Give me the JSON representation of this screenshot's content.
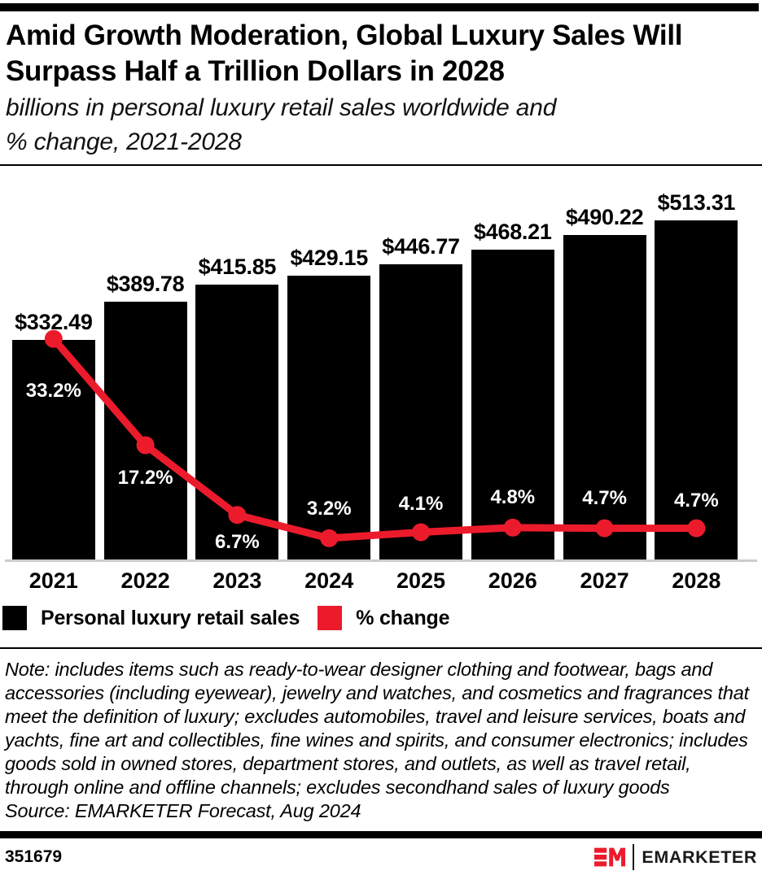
{
  "colors": {
    "accent_red": "#EC1B2C",
    "bar_black": "#000000",
    "axis_gray": "#cccccc",
    "pct_label_white": "#ffffff"
  },
  "header": {
    "title_line1": "Amid Growth Moderation, Global Luxury Sales Will",
    "title_line2": "Surpass Half a Trillion Dollars in 2028",
    "subtitle_line1": "billions in personal luxury retail sales worldwide and",
    "subtitle_line2": "% change, 2021-2028"
  },
  "chart_data": {
    "type": "bar",
    "subtype": "bar-line-combo",
    "categories": [
      "2021",
      "2022",
      "2023",
      "2024",
      "2025",
      "2026",
      "2027",
      "2028"
    ],
    "series": [
      {
        "name": "Personal luxury retail sales",
        "type": "bar",
        "unit": "$ billions",
        "color": "#000000",
        "values": [
          332.49,
          389.78,
          415.85,
          429.15,
          446.77,
          468.21,
          490.22,
          513.31
        ],
        "labels": [
          "$332.49",
          "$389.78",
          "$415.85",
          "$429.15",
          "$446.77",
          "$468.21",
          "$490.22",
          "$513.31"
        ]
      },
      {
        "name": "% change",
        "type": "line",
        "unit": "%",
        "color": "#EC1B2C",
        "values": [
          33.2,
          17.2,
          6.7,
          3.2,
          4.1,
          4.8,
          4.7,
          4.7
        ],
        "labels": [
          "33.2%",
          "17.2%",
          "6.7%",
          "3.2%",
          "4.1%",
          "4.8%",
          "4.7%",
          "4.7%"
        ]
      }
    ],
    "title": "Amid Growth Moderation, Global Luxury Sales Will Surpass Half a Trillion Dollars in 2028",
    "subtitle": "billions in personal luxury retail sales worldwide and % change, 2021-2028",
    "xlabel": "",
    "ylabel": "",
    "ylim_bars": [
      0,
      513.31
    ],
    "ylim_pct": [
      0,
      33.2
    ],
    "grid": false,
    "axes_hidden": true,
    "value_labels_position": "above bars (bold black)",
    "pct_labels_position": "on bars near line points (bold white)",
    "legend_position": "below chart, left-aligned"
  },
  "legend": {
    "items": [
      {
        "label": "Personal luxury retail sales",
        "color": "#000000"
      },
      {
        "label": "% change",
        "color": "#EC1B2C"
      }
    ]
  },
  "note": "Note: includes items such as ready-to-wear designer clothing and footwear, bags and accessories (including eyewear), jewelry and watches, and cosmetics and fragrances that meet the definition of luxury; excludes automobiles, travel and leisure services, boats and yachts, fine art and collectibles, fine wines and spirits, and consumer electronics; includes goods sold in owned stores, department stores, and outlets, as well as travel retail, through online and offline channels; excludes secondhand sales of luxury goods",
  "source": "Source: EMARKETER Forecast, Aug 2024",
  "footer": {
    "chart_id": "351679",
    "brand": "EMARKETER"
  }
}
